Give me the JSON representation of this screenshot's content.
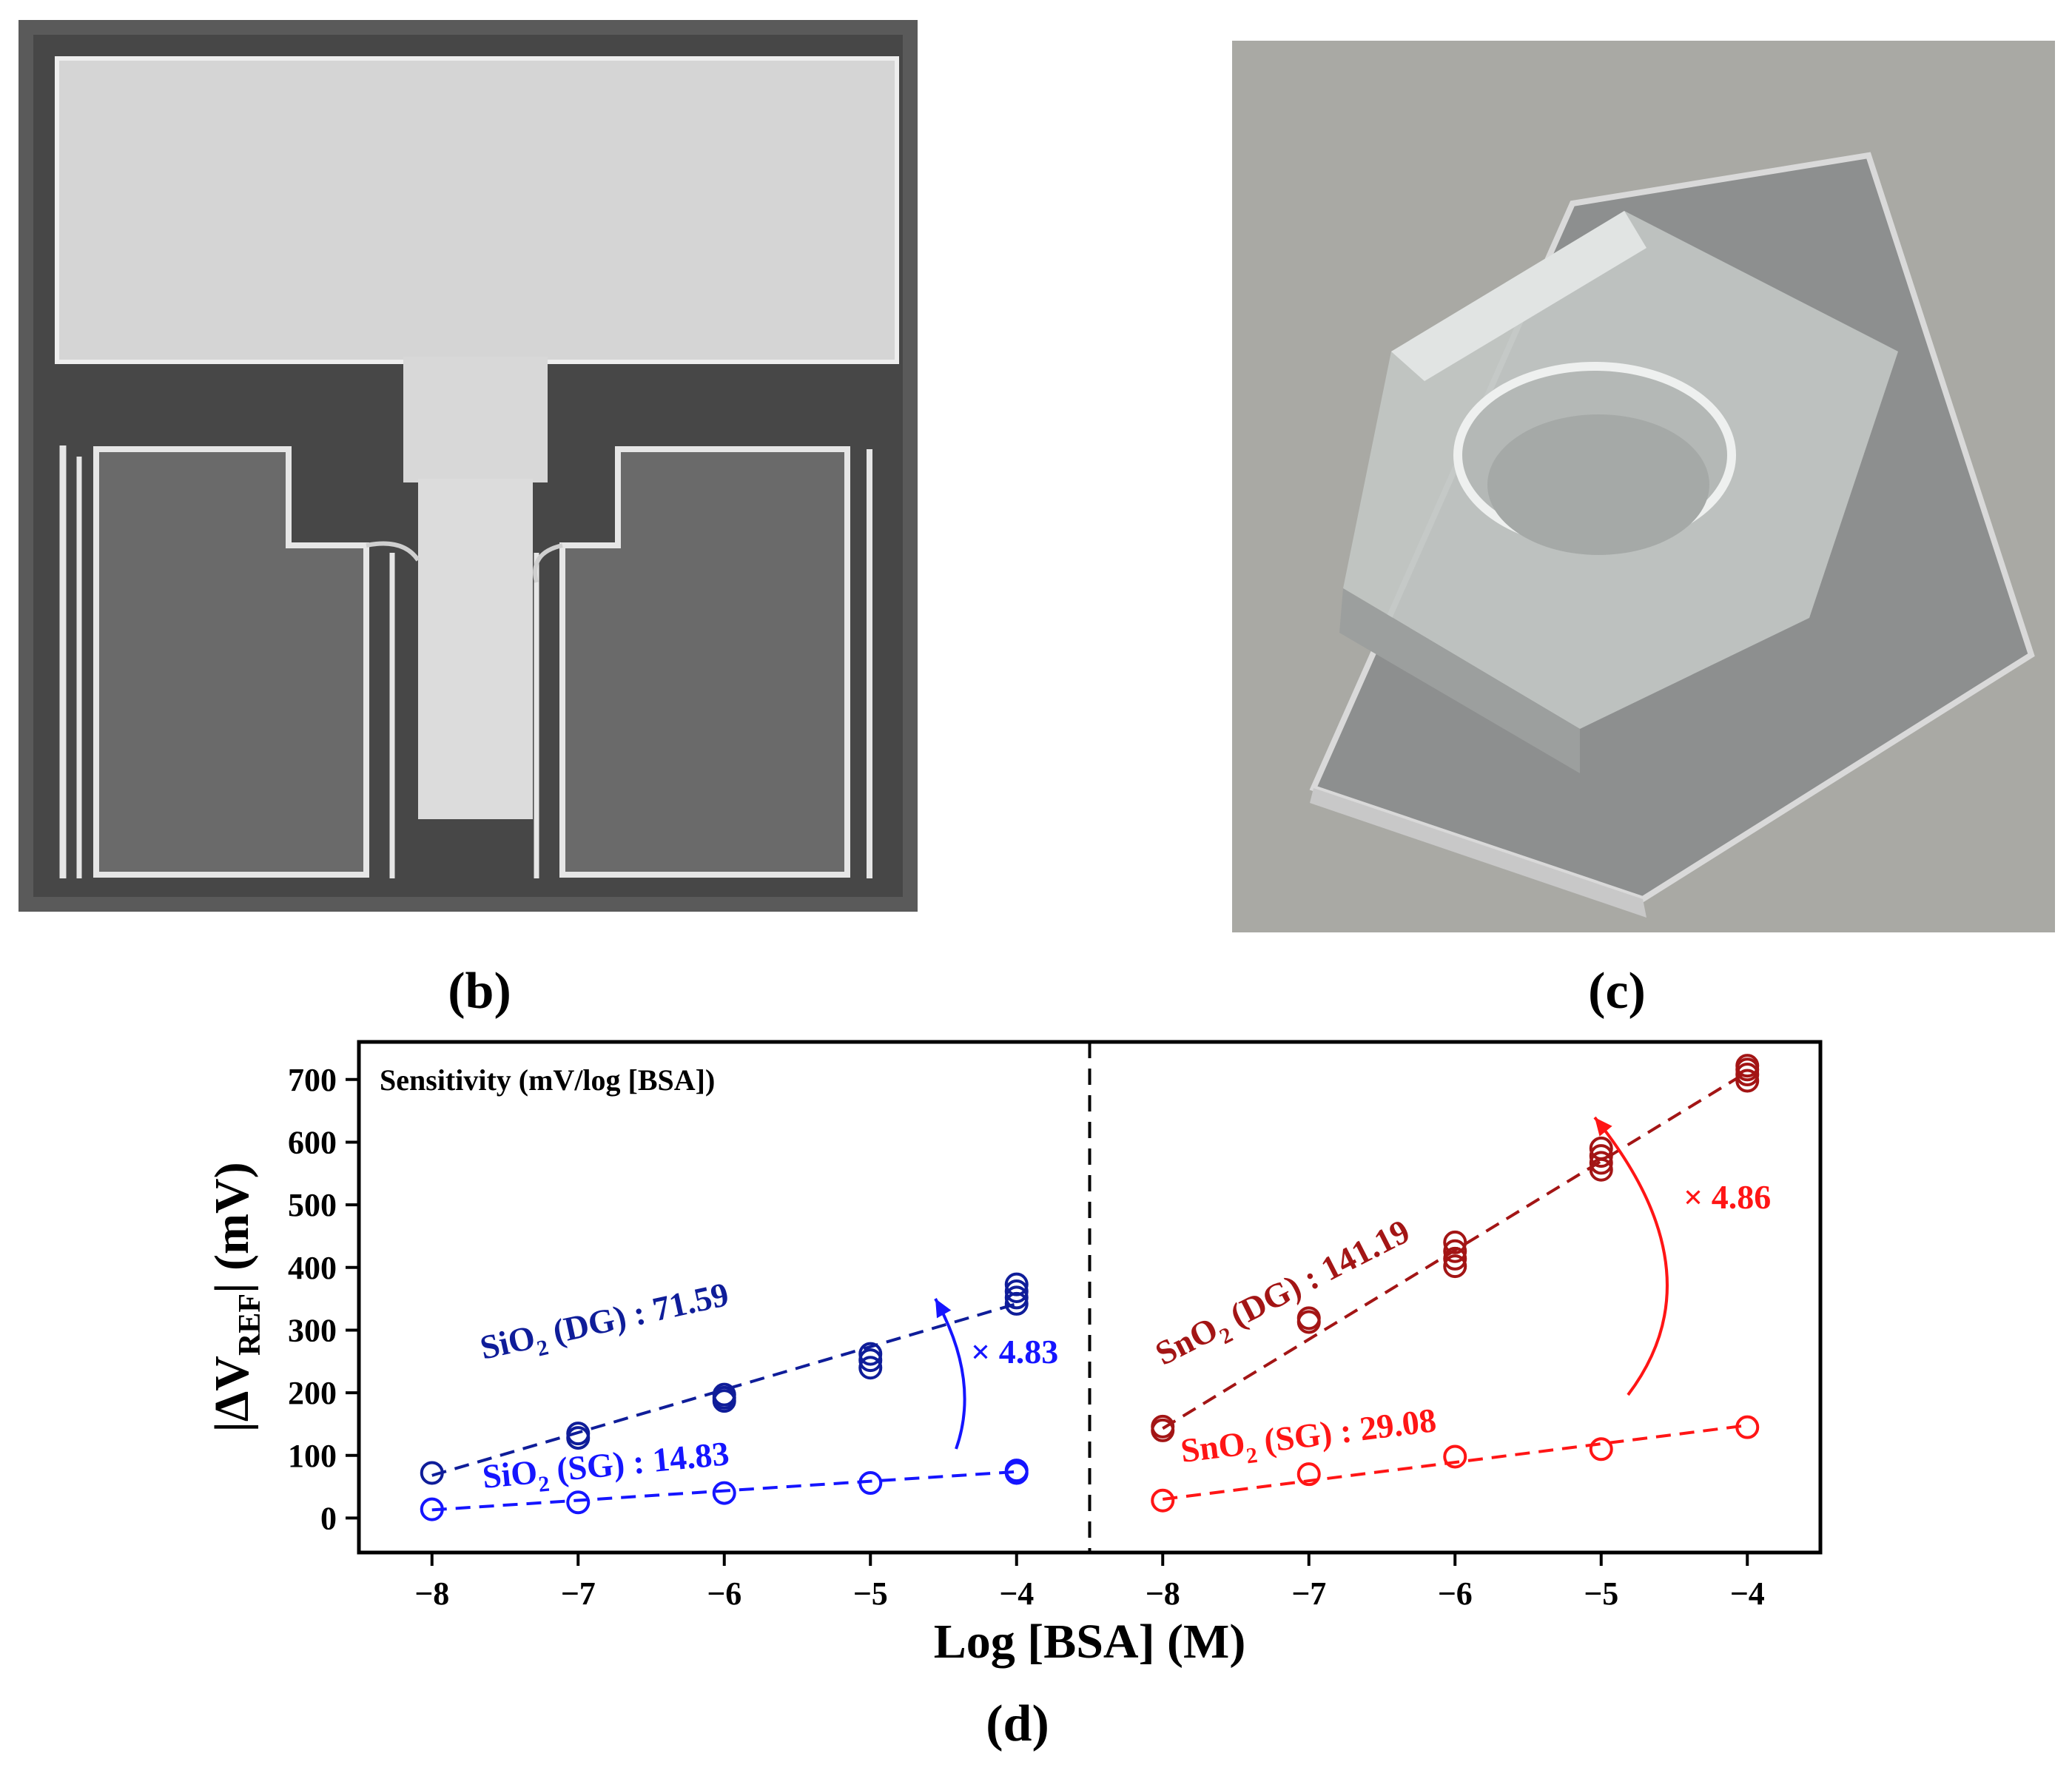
{
  "panels": {
    "b": {
      "label": "(b)",
      "photo": "Top view of a fabricated transistor chip: a large rectangular gate pad connected by a narrow central stem, flanked by two rectangular source/drain pads on a dark substrate"
    },
    "c": {
      "label": "(c)",
      "photo": "Angled photo of a glass substrate with a transparent PDMS block containing a circular well"
    },
    "d": {
      "label": "(d)"
    }
  },
  "colors": {
    "sio2_dg": "#0f1d99",
    "sio2_sg": "#1515ff",
    "sno2_dg": "#a31515",
    "sno2_sg": "#ff1515",
    "axis": "#000000"
  },
  "chart_data": {
    "type": "scatter",
    "annotation_title": "Sensitivity (mV/log [BSA])",
    "xlabel": "Log [BSA] (M)",
    "ylabel": "|ΔV_REF| (mV)",
    "ylim": [
      -55,
      760
    ],
    "yticks": [
      0,
      100,
      200,
      300,
      400,
      500,
      600,
      700
    ],
    "grid": false,
    "subplots": [
      {
        "xlim": [
          -8.5,
          -3.5
        ],
        "xticks": [
          -8,
          -7,
          -6,
          -5,
          -4
        ],
        "xticklabels": [
          "−8",
          "−7",
          "−6",
          "−5",
          "−4"
        ],
        "series": [
          {
            "name": "SiO2 (DG)",
            "color_key": "sio2_dg",
            "points": [
              [
                -8,
                72
              ],
              [
                -7,
                128
              ],
              [
                -7,
                135
              ],
              [
                -6,
                187
              ],
              [
                -6,
                192
              ],
              [
                -6,
                197
              ],
              [
                -5,
                240
              ],
              [
                -5,
                252
              ],
              [
                -5,
                262
              ],
              [
                -4,
                342
              ],
              [
                -4,
                352
              ],
              [
                -4,
                362
              ],
              [
                -4,
                373
              ]
            ],
            "fit": [
              [
                -8,
                68
              ],
              [
                -4,
                342
              ]
            ],
            "label": {
              "prefix": "SiO",
              "sub": "2",
              "suffix": " (DG) : 71.59"
            }
          },
          {
            "name": "SiO2 (SG)",
            "color_key": "sio2_sg",
            "points": [
              [
                -8,
                14
              ],
              [
                -7,
                25
              ],
              [
                -6,
                40
              ],
              [
                -5,
                56
              ],
              [
                -4,
                72
              ],
              [
                -4,
                76
              ]
            ],
            "fit": [
              [
                -8,
                13
              ],
              [
                -4,
                74
              ]
            ],
            "label": {
              "prefix": "SiO",
              "sub": "2",
              "suffix": " (SG) : 14.83"
            }
          }
        ],
        "ratio_label": "× 4.83",
        "ratio_color_key": "sio2_sg"
      },
      {
        "xlim": [
          -8.5,
          -3.5
        ],
        "xticks": [
          -8,
          -7,
          -6,
          -5,
          -4
        ],
        "xticklabels": [
          "−8",
          "−7",
          "−6",
          "−5",
          "−4"
        ],
        "series": [
          {
            "name": "SnO2 (DG)",
            "color_key": "sno2_dg",
            "points": [
              [
                -8,
                140
              ],
              [
                -8,
                146
              ],
              [
                -7,
                313
              ],
              [
                -7,
                319
              ],
              [
                -6,
                402
              ],
              [
                -6,
                414
              ],
              [
                -6,
                426
              ],
              [
                -6,
                440
              ],
              [
                -5,
                556
              ],
              [
                -5,
                567
              ],
              [
                -5,
                578
              ],
              [
                -5,
                590
              ],
              [
                -4,
                698
              ],
              [
                -4,
                708
              ],
              [
                -4,
                716
              ],
              [
                -4,
                722
              ]
            ],
            "fit": [
              [
                -8,
                143
              ],
              [
                -4,
                712
              ]
            ],
            "label": {
              "prefix": "SnO",
              "sub": "2",
              "suffix": " (DG) : 141.19"
            }
          },
          {
            "name": "SnO2 (SG)",
            "color_key": "sno2_sg",
            "points": [
              [
                -8,
                28
              ],
              [
                -7,
                70
              ],
              [
                -6,
                98
              ],
              [
                -5,
                110
              ],
              [
                -4,
                145
              ]
            ],
            "fit": [
              [
                -8,
                30
              ],
              [
                -4,
                148
              ]
            ],
            "label": {
              "prefix": "SnO",
              "sub": "2",
              "suffix": " (SG) : 29.08"
            }
          }
        ],
        "ratio_label": "× 4.86",
        "ratio_color_key": "sno2_sg"
      }
    ]
  }
}
